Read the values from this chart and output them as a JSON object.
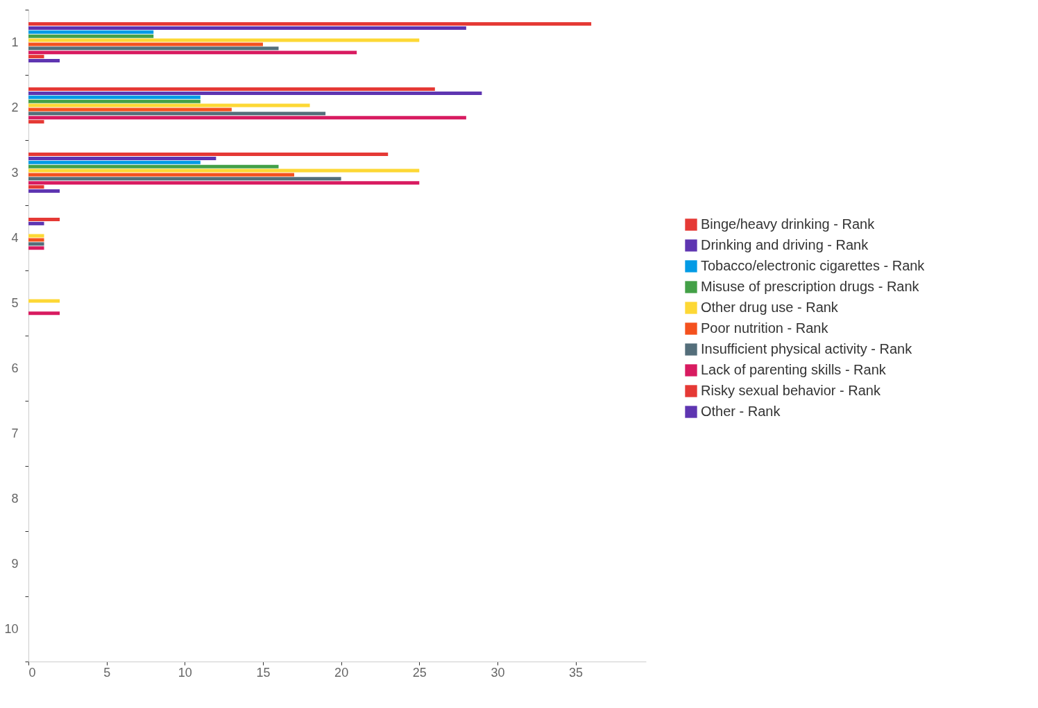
{
  "chart_data": {
    "type": "bar",
    "orientation": "horizontal",
    "categories": [
      "1",
      "2",
      "3",
      "4",
      "5",
      "6",
      "7",
      "8",
      "9",
      "10"
    ],
    "series": [
      {
        "name": "Binge/heavy drinking - Rank",
        "color": "#e53935",
        "values": [
          36,
          26,
          23,
          2,
          null,
          null,
          null,
          null,
          null,
          null
        ]
      },
      {
        "name": "Drinking and driving - Rank",
        "color": "#5e35b1",
        "values": [
          28,
          29,
          12,
          1,
          null,
          null,
          null,
          null,
          null,
          null
        ]
      },
      {
        "name": "Tobacco/electronic cigarettes - Rank",
        "color": "#039be5",
        "values": [
          8,
          11,
          11,
          null,
          null,
          null,
          null,
          null,
          null,
          null
        ]
      },
      {
        "name": "Misuse of prescription drugs - Rank",
        "color": "#43a047",
        "values": [
          8,
          11,
          16,
          null,
          null,
          null,
          null,
          null,
          null,
          null
        ]
      },
      {
        "name": "Other drug use - Rank",
        "color": "#fdd835",
        "values": [
          25,
          18,
          25,
          1,
          2,
          null,
          null,
          null,
          null,
          null
        ]
      },
      {
        "name": "Poor nutrition - Rank",
        "color": "#f4511e",
        "values": [
          15,
          13,
          17,
          1,
          null,
          null,
          null,
          null,
          null,
          null
        ]
      },
      {
        "name": "Insufficient physical activity - Rank",
        "color": "#546e7a",
        "values": [
          16,
          19,
          20,
          1,
          null,
          null,
          null,
          null,
          null,
          null
        ]
      },
      {
        "name": "Lack of parenting skills - Rank",
        "color": "#d81b60",
        "values": [
          21,
          28,
          25,
          1,
          2,
          null,
          null,
          null,
          null,
          null
        ]
      },
      {
        "name": "Risky sexual behavior - Rank",
        "color": "#e53935",
        "values": [
          1,
          1,
          1,
          null,
          null,
          null,
          null,
          null,
          null,
          null
        ]
      },
      {
        "name": "Other - Rank",
        "color": "#5e35b1",
        "values": [
          2,
          null,
          2,
          null,
          null,
          null,
          null,
          null,
          null,
          null
        ]
      }
    ],
    "xlim": [
      0,
      39.5
    ],
    "xticks": [
      0,
      5,
      10,
      15,
      20,
      25,
      30,
      35
    ],
    "grid": false,
    "legend": "right"
  }
}
